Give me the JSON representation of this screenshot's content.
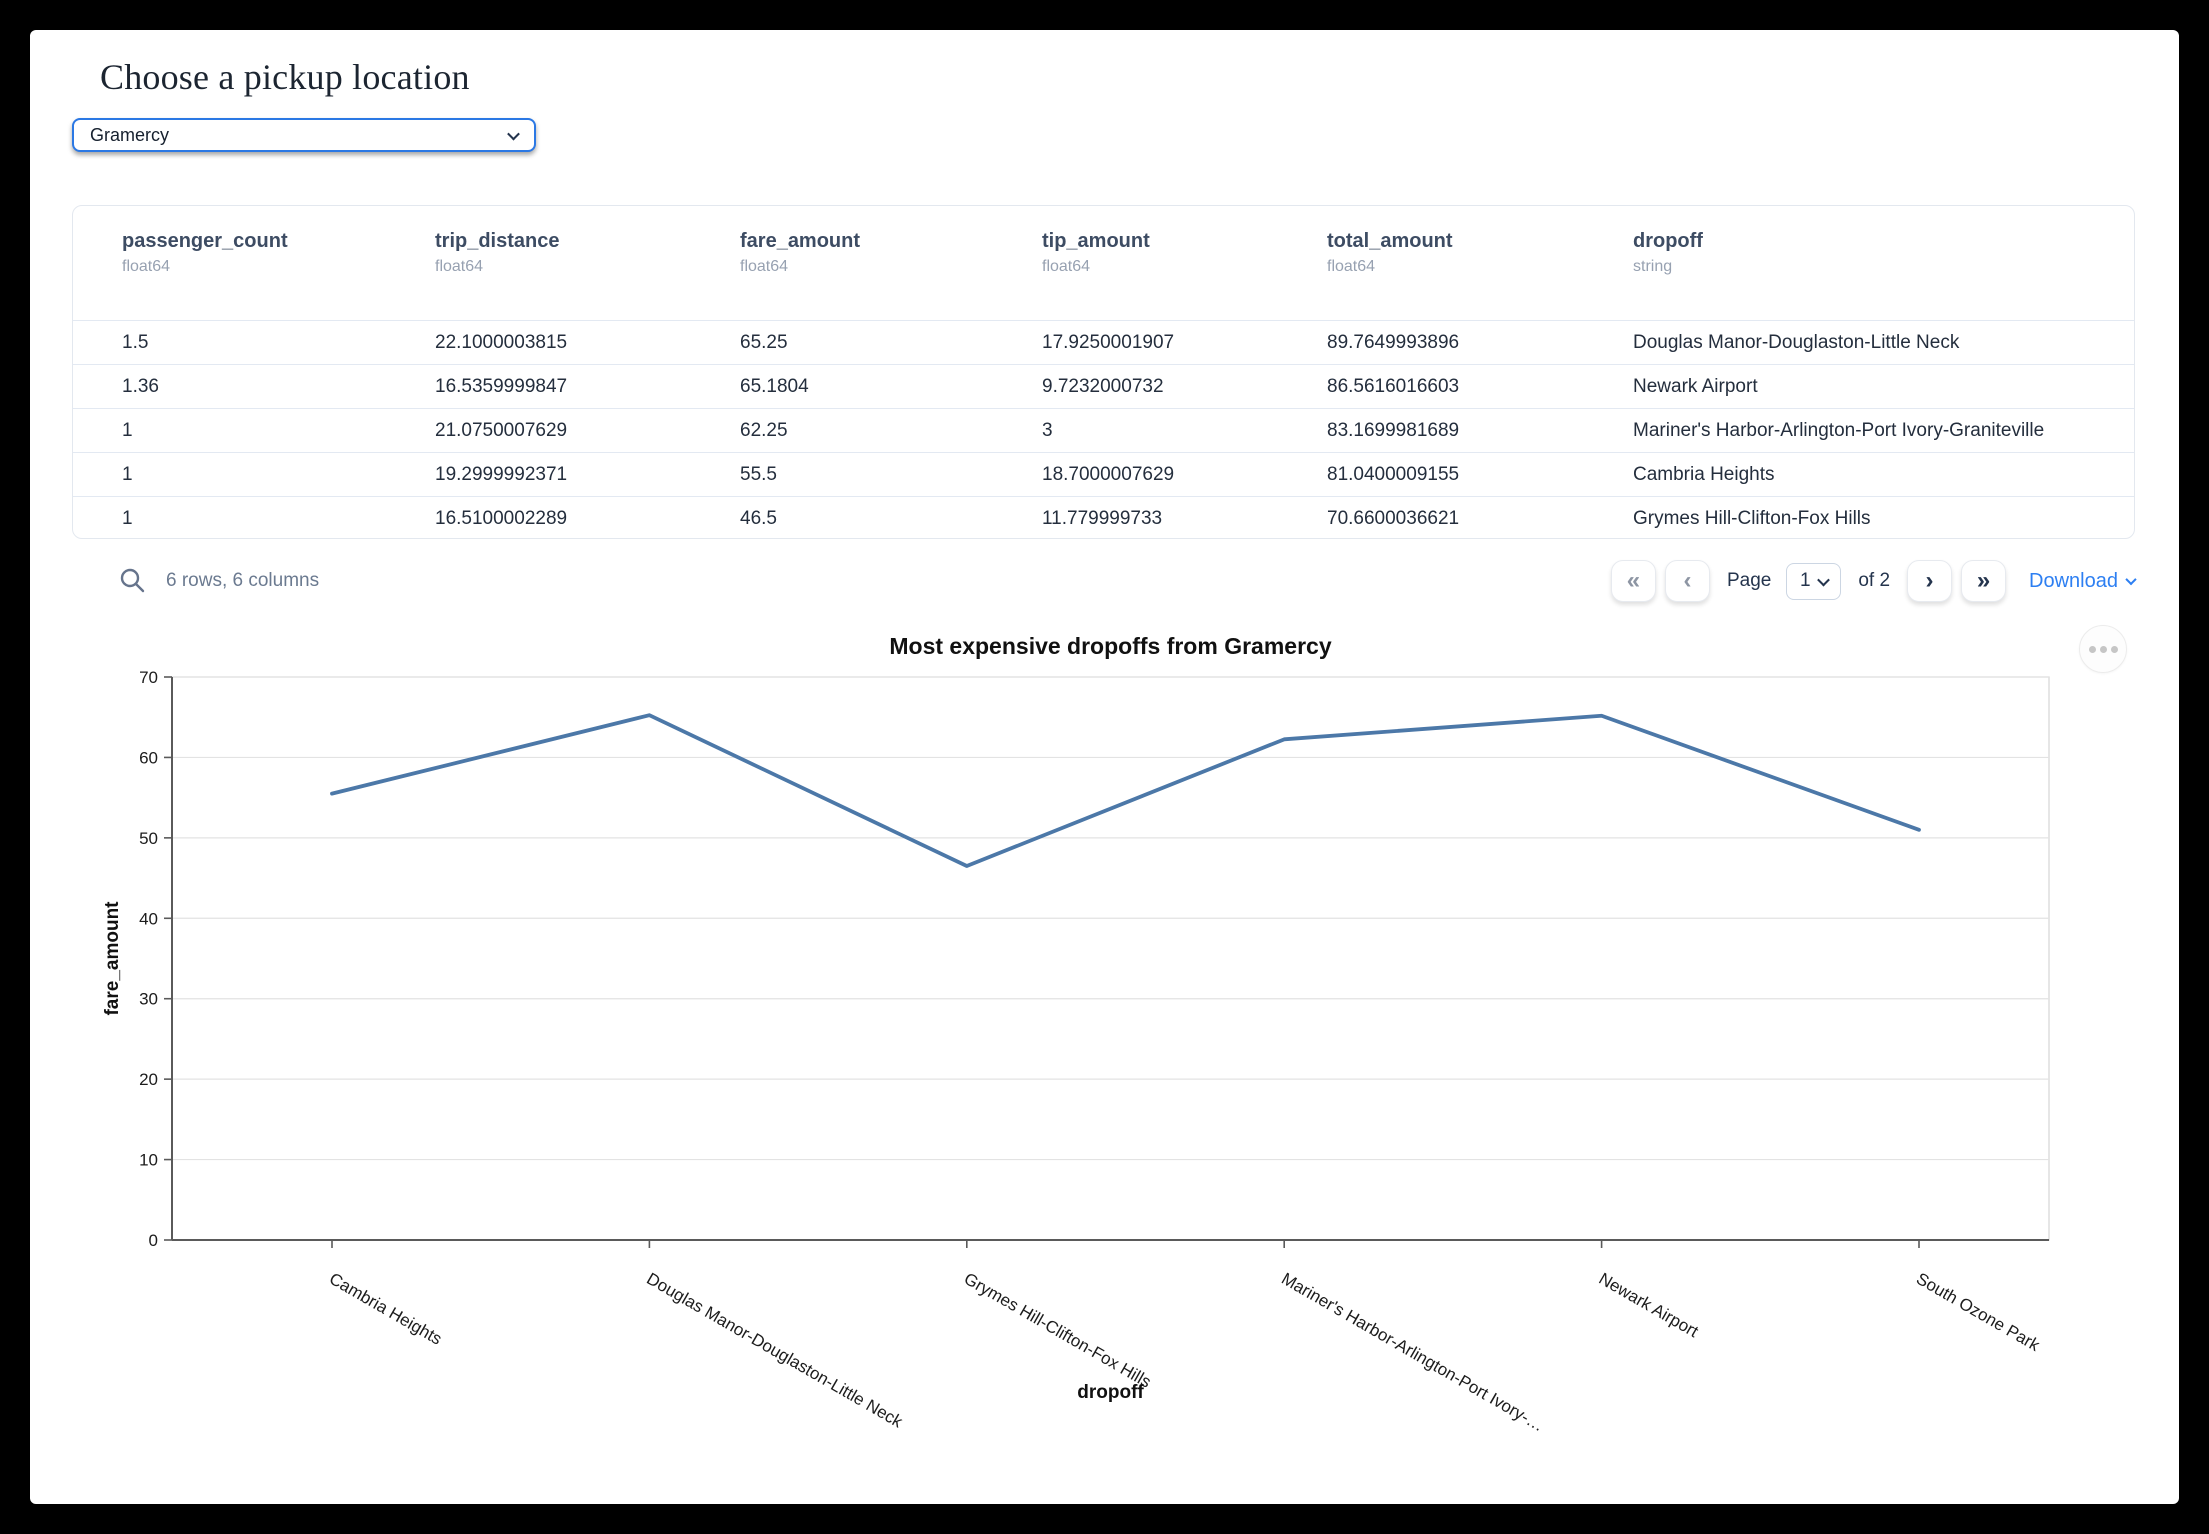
{
  "page_title": "Choose a pickup location",
  "pickup_select": {
    "value": "Gramercy"
  },
  "table": {
    "columns": [
      {
        "name": "passenger_count",
        "type": "float64"
      },
      {
        "name": "trip_distance",
        "type": "float64"
      },
      {
        "name": "fare_amount",
        "type": "float64"
      },
      {
        "name": "tip_amount",
        "type": "float64"
      },
      {
        "name": "total_amount",
        "type": "float64"
      },
      {
        "name": "dropoff",
        "type": "string"
      }
    ],
    "rows": [
      [
        "1.5",
        "22.1000003815",
        "65.25",
        "17.9250001907",
        "89.7649993896",
        "Douglas Manor-Douglaston-Little Neck"
      ],
      [
        "1.36",
        "16.5359999847",
        "65.1804",
        "9.7232000732",
        "86.5616016603",
        "Newark Airport"
      ],
      [
        "1",
        "21.0750007629",
        "62.25",
        "3",
        "83.1699981689",
        "Mariner's Harbor-Arlington-Port Ivory-Graniteville"
      ],
      [
        "1",
        "19.2999992371",
        "55.5",
        "18.7000007629",
        "81.0400009155",
        "Cambria Heights"
      ],
      [
        "1",
        "16.5100002289",
        "46.5",
        "11.779999733",
        "70.6600036621",
        "Grymes Hill-Clifton-Fox Hills"
      ]
    ]
  },
  "footer": {
    "summary": "6 rows, 6 columns",
    "page_label": "Page",
    "page_value": "1",
    "of_label": "of 2",
    "download_label": "Download"
  },
  "icons": {
    "search": "magnifier",
    "first_page": "«",
    "prev_page": "‹",
    "next_page": "›",
    "last_page": "»",
    "ellipsis": "···",
    "chevron_down": "⌄"
  },
  "colors": {
    "accent_blue": "#2b78e4",
    "link_blue": "#2d7ff2",
    "line": "#4c78a8",
    "grid": "#e3e3e3",
    "spine": "#5a5a5a"
  },
  "chart_data": {
    "type": "line",
    "title": "Most expensive dropoffs from Gramercy",
    "xlabel": "dropoff",
    "ylabel": "fare_amount",
    "categories": [
      "Cambria Heights",
      "Douglas Manor-Douglaston-Little Neck",
      "Grymes Hill-Clifton-Fox Hills",
      "Mariner's Harbor-Arlington-Port Ivory-Graniteville",
      "Newark Airport",
      "South Ozone Park"
    ],
    "tick_labels": [
      "Cambria Heights",
      "Douglas Manor-Douglaston-Little Neck",
      "Grymes Hill-Clifton-Fox Hills",
      "Mariner's Harbor-Arlington-Port Ivory-…",
      "Newark Airport",
      "South Ozone Park"
    ],
    "values": [
      55.5,
      65.25,
      46.5,
      62.25,
      65.1804,
      51
    ],
    "ylim": [
      0,
      70
    ],
    "yticks": [
      0,
      10,
      20,
      30,
      40,
      50,
      60,
      70
    ],
    "grid": true,
    "legend": "none",
    "line_color": "#4c78a8"
  }
}
